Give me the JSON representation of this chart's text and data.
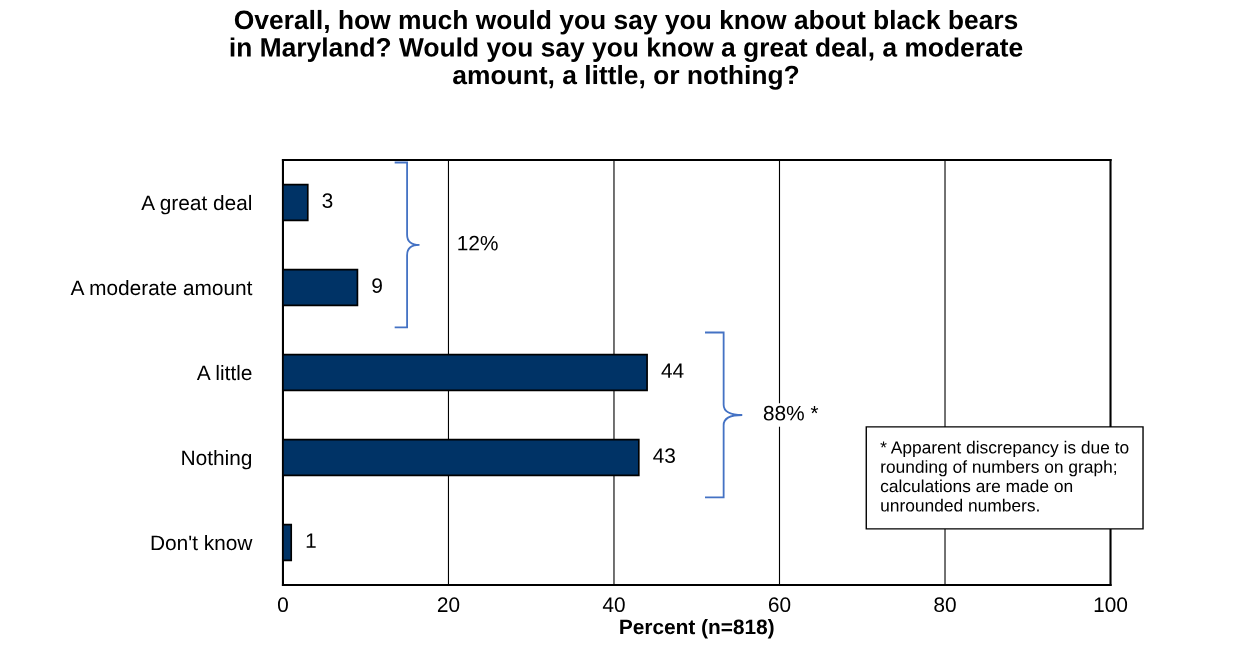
{
  "chart_data": {
    "type": "bar",
    "orientation": "horizontal",
    "title": "Overall, how much would you say you know about black bears\nin Maryland? Would you say you know a great deal, a moderate\namount, a little, or nothing?",
    "xlabel": "Percent (n=818)",
    "categories": [
      "A great deal",
      "A moderate amount",
      "A little",
      "Nothing",
      "Don't know"
    ],
    "values": [
      3,
      9,
      44,
      43,
      1
    ],
    "color": "#003366",
    "data_labels": true,
    "xlim": [
      0,
      100
    ],
    "xticks": [
      0,
      20,
      40,
      60,
      80,
      100
    ],
    "grid": "x",
    "annotations": [
      "12%",
      "88% *",
      "* Apparent discrepancy is due to\nrounding of numbers on graph;\ncalculations are made on\nunrounded numbers."
    ]
  }
}
